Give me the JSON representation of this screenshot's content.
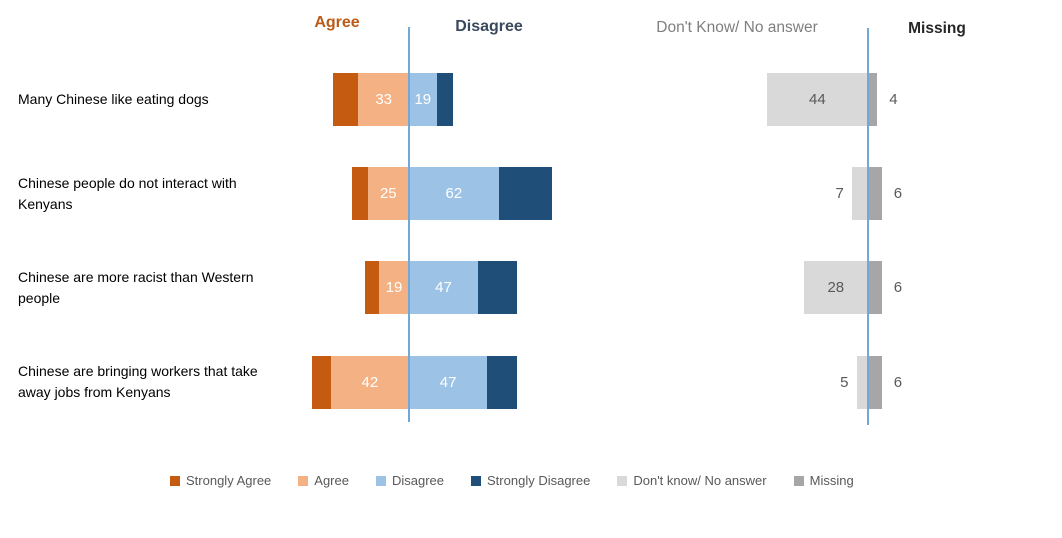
{
  "header": {
    "agree": {
      "label": "Agree",
      "color": "#BE5A17"
    },
    "disagree": {
      "label": "Disagree",
      "color": "#3A4A5E"
    },
    "dont_know": {
      "label": "Don't Know/ No answer",
      "color": "#7F7F7F"
    },
    "missing": {
      "label": "Missing",
      "color": "#262626"
    }
  },
  "chart_data": {
    "type": "bar",
    "subtype": "diverging-stacked-horizontal",
    "title": "",
    "xlabel": "",
    "ylabel": "",
    "units": "percent",
    "grid": false,
    "legend_position": "bottom",
    "categories": [
      "Many Chinese like eating dogs",
      "Chinese people do not interact with Kenyans",
      "Chinese are more racist than Western people",
      "Chinese are bringing workers that take away jobs from Kenyans"
    ],
    "series": [
      {
        "name": "Strongly Agree",
        "color": "#C55A11",
        "values": [
          11,
          7,
          6,
          8
        ]
      },
      {
        "name": "Agree",
        "color": "#F4B183",
        "values": [
          22,
          18,
          13,
          34
        ]
      },
      {
        "name": "Disagree",
        "color": "#9CC3E6",
        "values": [
          12,
          39,
          30,
          34
        ]
      },
      {
        "name": "Strongly Disagree",
        "color": "#1F4E79",
        "values": [
          7,
          23,
          17,
          13
        ]
      },
      {
        "name": "Don't know/ No answer",
        "color": "#D9D9D9",
        "values": [
          44,
          7,
          28,
          5
        ]
      },
      {
        "name": "Missing",
        "color": "#A6A6A6",
        "values": [
          4,
          6,
          6,
          6
        ]
      }
    ],
    "data_labels": {
      "agree_total": [
        33,
        25,
        19,
        42
      ],
      "disagree_total": [
        19,
        62,
        47,
        47
      ],
      "dont_know": [
        44,
        7,
        28,
        5
      ],
      "missing": [
        4,
        6,
        6,
        6
      ]
    },
    "axis_line_color": "#71A8D7"
  },
  "legend": {
    "items": [
      {
        "label": "Strongly Agree",
        "color": "#C55A11"
      },
      {
        "label": "Agree",
        "color": "#F4B183"
      },
      {
        "label": "Disagree",
        "color": "#9CC3E6"
      },
      {
        "label": "Strongly Disagree",
        "color": "#1F4E79"
      },
      {
        "label": "Don't know/ No answer",
        "color": "#D9D9D9"
      },
      {
        "label": "Missing",
        "color": "#A6A6A6"
      }
    ]
  }
}
